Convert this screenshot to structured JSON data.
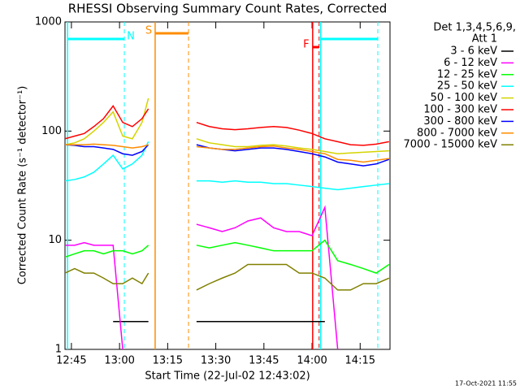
{
  "chart_data": {
    "type": "line",
    "title": "RHESSI Observing Summary Count Rates, Corrected",
    "xlabel": "Start Time (22-Jul-02 12:43:02)",
    "ylabel": "Corrected Count Rate (s⁻¹ detector⁻¹)",
    "legend_title": [
      "Det 1,3,4,5,6,9,",
      "Att 1"
    ],
    "footer": "17-Oct-2021 11:55",
    "log_y": true,
    "xlim": [
      763,
      864.3
    ],
    "ylim": [
      1,
      1000
    ],
    "xticks": [
      {
        "value": 765,
        "label": "12:45"
      },
      {
        "value": 780,
        "label": "13:00"
      },
      {
        "value": 795,
        "label": "13:15"
      },
      {
        "value": 810,
        "label": "13:30"
      },
      {
        "value": 825,
        "label": "13:45"
      },
      {
        "value": 840,
        "label": "14:00"
      },
      {
        "value": 855,
        "label": "14:15"
      }
    ],
    "yticks": [
      1,
      10,
      100,
      1000
    ],
    "x": [
      763,
      766,
      769,
      772,
      775,
      778,
      781,
      784,
      787,
      789,
      797,
      804,
      808,
      812,
      816,
      820,
      824,
      828,
      832,
      836,
      840,
      844,
      848,
      852,
      856,
      860,
      864
    ],
    "series": [
      {
        "name": "3 - 6 keV",
        "color": "#000000",
        "values": [
          null,
          null,
          null,
          null,
          null,
          1.8,
          1.8,
          1.8,
          1.8,
          1.8,
          null,
          1.8,
          1.8,
          1.8,
          1.8,
          1.8,
          1.8,
          1.8,
          1.8,
          1.8,
          1.8,
          1.8,
          null,
          null,
          null,
          null,
          null
        ]
      },
      {
        "name": "6 - 12 keV",
        "color": "#ff00ff",
        "values": [
          9,
          9,
          9.5,
          9,
          9,
          9,
          1,
          null,
          null,
          null,
          null,
          14,
          13,
          12,
          13,
          15,
          16,
          13,
          12,
          12,
          11,
          20,
          1,
          null,
          null,
          null,
          null
        ]
      },
      {
        "name": "12 - 25 keV",
        "color": "#00ff00",
        "values": [
          7,
          7.5,
          8,
          8,
          7.5,
          8,
          8,
          7.5,
          8,
          9,
          null,
          9,
          8.5,
          9,
          9.5,
          9,
          8.5,
          8,
          8,
          8,
          8,
          10,
          6.5,
          6,
          5.5,
          5,
          6
        ]
      },
      {
        "name": "25 - 50 keV",
        "color": "#00ffff",
        "values": [
          35,
          36,
          38,
          42,
          50,
          60,
          45,
          50,
          60,
          80,
          null,
          35,
          35,
          34,
          35,
          34,
          34,
          33,
          33,
          32,
          31,
          30,
          29,
          30,
          31,
          32,
          33
        ]
      },
      {
        "name": "50 - 100 keV",
        "color": "#d4d400",
        "values": [
          75,
          78,
          85,
          100,
          120,
          150,
          90,
          85,
          120,
          200,
          null,
          85,
          78,
          75,
          72,
          72,
          74,
          75,
          73,
          70,
          68,
          65,
          62,
          63,
          64,
          65,
          66
        ]
      },
      {
        "name": "100 - 300 keV",
        "color": "#ff0000",
        "values": [
          85,
          90,
          95,
          110,
          130,
          170,
          120,
          110,
          130,
          160,
          null,
          120,
          110,
          105,
          103,
          105,
          108,
          110,
          108,
          102,
          95,
          85,
          80,
          75,
          74,
          76,
          80
        ]
      },
      {
        "name": "300 - 800 keV",
        "color": "#0000ff",
        "values": [
          75,
          74,
          72,
          72,
          70,
          68,
          62,
          60,
          65,
          75,
          null,
          75,
          70,
          68,
          66,
          68,
          70,
          70,
          68,
          65,
          62,
          58,
          52,
          50,
          48,
          50,
          55
        ]
      },
      {
        "name": "800 - 7000 keV",
        "color": "#ff8c00",
        "values": [
          75,
          75,
          75,
          76,
          75,
          74,
          72,
          70,
          72,
          75,
          null,
          72,
          70,
          68,
          68,
          70,
          72,
          73,
          70,
          68,
          65,
          62,
          55,
          54,
          52,
          54,
          56
        ]
      },
      {
        "name": "7000 - 15000 keV",
        "color": "#808000",
        "values": [
          5,
          5.5,
          5,
          5,
          4.5,
          4,
          4,
          4.5,
          4,
          5,
          null,
          3.5,
          4,
          4.5,
          5,
          6,
          6,
          6,
          6,
          5,
          5,
          4.5,
          3.5,
          3.5,
          4,
          4,
          4.5
        ]
      }
    ],
    "intervals": [
      {
        "label": "N",
        "color": "#00ffff",
        "start": 763.8,
        "end": 781.5
      },
      {
        "label": "S",
        "color": "#ff8c00",
        "start": 791.1,
        "end": 801.5
      },
      {
        "label": "F",
        "color": "#ff0000",
        "start": 840.2,
        "end": 842.2
      },
      {
        "label": null,
        "color": "#00ffff",
        "start": 842.7,
        "end": 860.5
      }
    ]
  }
}
